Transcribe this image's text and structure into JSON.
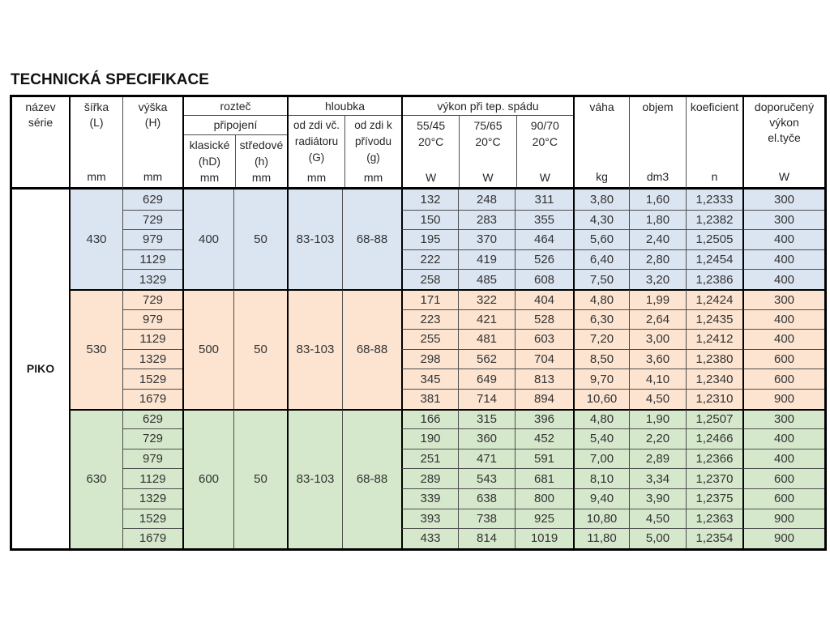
{
  "title": "TECHNICKÁ SPECIFIKACE",
  "series_name": "PIKO",
  "header": {
    "name_line1": "název",
    "name_line2": "série",
    "width_line1": "šířka",
    "width_line2": "(L)",
    "width_unit": "mm",
    "height_line1": "výška",
    "height_line2": "(H)",
    "height_unit": "mm",
    "pitch_group_line1": "rozteč",
    "pitch_group_line2": "připojení",
    "pitch_classic_label": "klasické",
    "pitch_classic_sym": "(hD)",
    "pitch_classic_unit": "mm",
    "pitch_central_label": "středové",
    "pitch_central_sym": "(h)",
    "pitch_central_unit": "mm",
    "depth_group": "hloubka",
    "depth_wall_line1": "od zdi vč.",
    "depth_wall_line2": "radiátoru",
    "depth_wall_sym": "(G)",
    "depth_wall_unit": "mm",
    "depth_supply_line1": "od zdi k",
    "depth_supply_line2": "přívodu",
    "depth_supply_sym": "(g)",
    "depth_supply_unit": "mm",
    "power_group": "výkon při tep. spádu",
    "power_cols": [
      {
        "grad": "55/45",
        "temp": "20°C",
        "unit": "W"
      },
      {
        "grad": "75/65",
        "temp": "20°C",
        "unit": "W"
      },
      {
        "grad": "90/70",
        "temp": "20°C",
        "unit": "W"
      }
    ],
    "weight_label": "váha",
    "weight_unit": "kg",
    "volume_label": "objem",
    "volume_unit": "dm3",
    "coef_label": "koeficient",
    "coef_unit": "n",
    "rec_line1": "doporučený",
    "rec_line2": "výkon",
    "rec_line3": "el.tyče",
    "rec_unit": "W"
  },
  "colors": {
    "group1_fill": "#dbe5f2",
    "group2_fill": "#fce4d1",
    "group3_fill": "#d6e8cc",
    "thin_line": "#4d4d4d",
    "thick_line": "#000000"
  },
  "table": {
    "groups": [
      {
        "sirka": "430",
        "klasicke": "400",
        "stredove": "50",
        "hloubka_g": "83-103",
        "hloubka_priv": "68-88",
        "color": "#dbe5f2",
        "rows": [
          {
            "vyska": "629",
            "p55": "132",
            "p75": "248",
            "p90": "311",
            "vaha": "3,80",
            "objem": "1,60",
            "koef": "1,2333",
            "dopor": "300"
          },
          {
            "vyska": "729",
            "p55": "150",
            "p75": "283",
            "p90": "355",
            "vaha": "4,30",
            "objem": "1,80",
            "koef": "1,2382",
            "dopor": "300"
          },
          {
            "vyska": "979",
            "p55": "195",
            "p75": "370",
            "p90": "464",
            "vaha": "5,60",
            "objem": "2,40",
            "koef": "1,2505",
            "dopor": "400"
          },
          {
            "vyska": "1129",
            "p55": "222",
            "p75": "419",
            "p90": "526",
            "vaha": "6,40",
            "objem": "2,80",
            "koef": "1,2454",
            "dopor": "400"
          },
          {
            "vyska": "1329",
            "p55": "258",
            "p75": "485",
            "p90": "608",
            "vaha": "7,50",
            "objem": "3,20",
            "koef": "1,2386",
            "dopor": "400"
          }
        ]
      },
      {
        "sirka": "530",
        "klasicke": "500",
        "stredove": "50",
        "hloubka_g": "83-103",
        "hloubka_priv": "68-88",
        "color": "#fce4d1",
        "rows": [
          {
            "vyska": "729",
            "p55": "171",
            "p75": "322",
            "p90": "404",
            "vaha": "4,80",
            "objem": "1,99",
            "koef": "1,2424",
            "dopor": "300"
          },
          {
            "vyska": "979",
            "p55": "223",
            "p75": "421",
            "p90": "528",
            "vaha": "6,30",
            "objem": "2,64",
            "koef": "1,2435",
            "dopor": "400"
          },
          {
            "vyska": "1129",
            "p55": "255",
            "p75": "481",
            "p90": "603",
            "vaha": "7,20",
            "objem": "3,00",
            "koef": "1,2412",
            "dopor": "400"
          },
          {
            "vyska": "1329",
            "p55": "298",
            "p75": "562",
            "p90": "704",
            "vaha": "8,50",
            "objem": "3,60",
            "koef": "1,2380",
            "dopor": "600"
          },
          {
            "vyska": "1529",
            "p55": "345",
            "p75": "649",
            "p90": "813",
            "vaha": "9,70",
            "objem": "4,10",
            "koef": "1,2340",
            "dopor": "600"
          },
          {
            "vyska": "1679",
            "p55": "381",
            "p75": "714",
            "p90": "894",
            "vaha": "10,60",
            "objem": "4,50",
            "koef": "1,2310",
            "dopor": "900"
          }
        ]
      },
      {
        "sirka": "630",
        "klasicke": "600",
        "stredove": "50",
        "hloubka_g": "83-103",
        "hloubka_priv": "68-88",
        "color": "#d6e8cc",
        "rows": [
          {
            "vyska": "629",
            "p55": "166",
            "p75": "315",
            "p90": "396",
            "vaha": "4,80",
            "objem": "1,90",
            "koef": "1,2507",
            "dopor": "300"
          },
          {
            "vyska": "729",
            "p55": "190",
            "p75": "360",
            "p90": "452",
            "vaha": "5,40",
            "objem": "2,20",
            "koef": "1,2466",
            "dopor": "400"
          },
          {
            "vyska": "979",
            "p55": "251",
            "p75": "471",
            "p90": "591",
            "vaha": "7,00",
            "objem": "2,89",
            "koef": "1,2366",
            "dopor": "400"
          },
          {
            "vyska": "1129",
            "p55": "289",
            "p75": "543",
            "p90": "681",
            "vaha": "8,10",
            "objem": "3,34",
            "koef": "1,2370",
            "dopor": "600"
          },
          {
            "vyska": "1329",
            "p55": "339",
            "p75": "638",
            "p90": "800",
            "vaha": "9,40",
            "objem": "3,90",
            "koef": "1,2375",
            "dopor": "600"
          },
          {
            "vyska": "1529",
            "p55": "393",
            "p75": "738",
            "p90": "925",
            "vaha": "10,80",
            "objem": "4,50",
            "koef": "1,2363",
            "dopor": "900"
          },
          {
            "vyska": "1679",
            "p55": "433",
            "p75": "814",
            "p90": "1019",
            "vaha": "11,80",
            "objem": "5,00",
            "koef": "1,2354",
            "dopor": "900"
          }
        ]
      }
    ]
  }
}
